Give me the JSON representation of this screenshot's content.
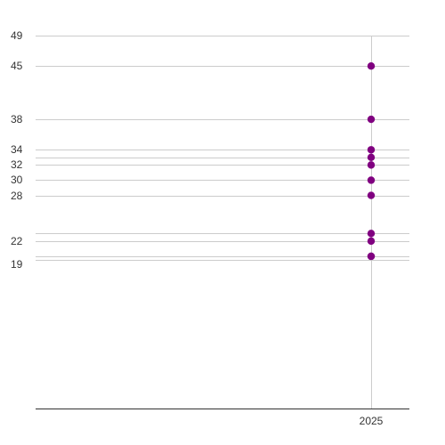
{
  "chart_data": {
    "type": "scatter",
    "title": "",
    "xlabel": "",
    "ylabel": "",
    "x_ticks": [
      "2025"
    ],
    "y_ticks": [
      19,
      22,
      28,
      30,
      32,
      34,
      38,
      45,
      49
    ],
    "ylim": [
      0,
      49
    ],
    "grid": true,
    "legend": "none",
    "marker_color": "#800080",
    "gridline_color": "#cccccc",
    "axis_color": "#333333",
    "y_gridlines": [
      19.5,
      20,
      22,
      23,
      28,
      30,
      32,
      33,
      34,
      38,
      45,
      49
    ],
    "series": [
      {
        "points": [
          {
            "x": "2025",
            "y": 45
          },
          {
            "x": "2025",
            "y": 38
          },
          {
            "x": "2025",
            "y": 34
          },
          {
            "x": "2025",
            "y": 33
          },
          {
            "x": "2025",
            "y": 32
          },
          {
            "x": "2025",
            "y": 30
          },
          {
            "x": "2025",
            "y": 28
          },
          {
            "x": "2025",
            "y": 23
          },
          {
            "x": "2025",
            "y": 22
          },
          {
            "x": "2025",
            "y": 20
          },
          {
            "x": "2025",
            "y": 20
          }
        ]
      }
    ]
  }
}
